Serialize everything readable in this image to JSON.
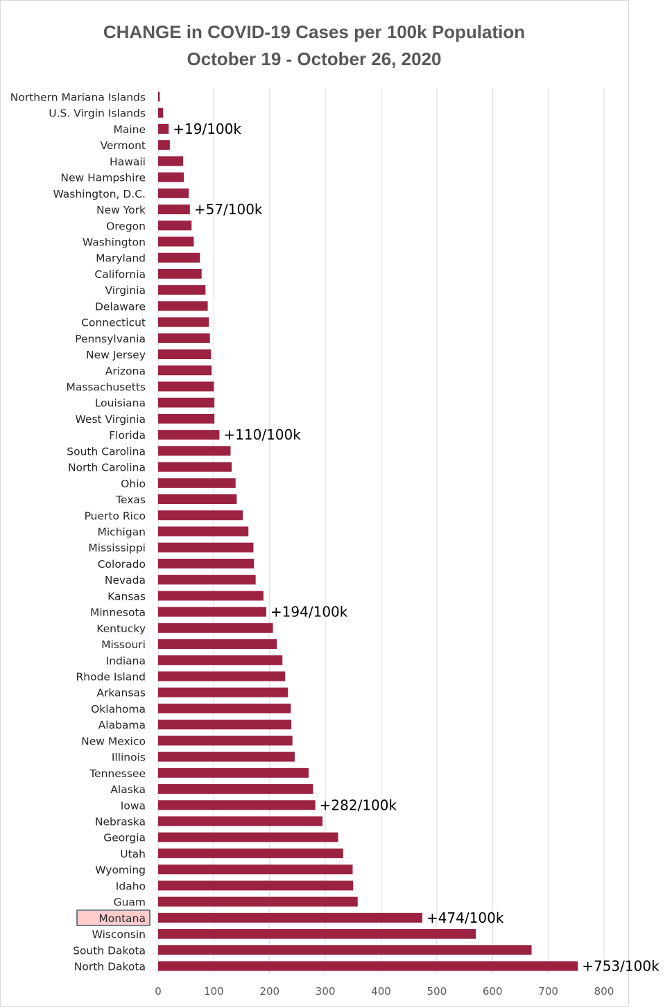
{
  "chart_data": {
    "type": "bar",
    "orientation": "horizontal",
    "title": "CHANGE in COVID-19 Cases per 100k Population",
    "subtitle": "October 19 - October 26, 2020",
    "xlabel": "",
    "ylabel": "",
    "xlim": [
      0,
      800
    ],
    "xticks": [
      "0",
      "100",
      "200",
      "300",
      "400",
      "500",
      "600",
      "700",
      "800"
    ],
    "grid": true,
    "legend": "none",
    "bar_color": "#9b2242",
    "highlight_color": "#ffcccc",
    "highlight_border": "#44546a",
    "highlighted_category": "Montana",
    "categories": [
      "Northern Mariana Islands",
      "U.S. Virgin Islands",
      "Maine",
      "Vermont",
      "Hawaii",
      "New Hampshire",
      "Washington, D.C.",
      "New York",
      "Oregon",
      "Washington",
      "Maryland",
      "California",
      "Virginia",
      "Delaware",
      "Connecticut",
      "Pennsylvania",
      "New Jersey",
      "Arizona",
      "Massachusetts",
      "Louisiana",
      "West Virginia",
      "Florida",
      "South Carolina",
      "North Carolina",
      "Ohio",
      "Texas",
      "Puerto Rico",
      "Michigan",
      "Mississippi",
      "Colorado",
      "Nevada",
      "Kansas",
      "Minnesota",
      "Kentucky",
      "Missouri",
      "Indiana",
      "Rhode Island",
      "Arkansas",
      "Oklahoma",
      "Alabama",
      "New Mexico",
      "Illinois",
      "Tennessee",
      "Alaska",
      "Iowa",
      "Nebraska",
      "Georgia",
      "Utah",
      "Wyoming",
      "Idaho",
      "Guam",
      "Montana",
      "Wisconsin",
      "South Dakota",
      "North Dakota"
    ],
    "values": [
      3,
      9,
      19,
      21,
      45,
      46,
      55,
      57,
      60,
      64,
      75,
      78,
      85,
      89,
      91,
      93,
      95,
      96,
      100,
      101,
      101,
      110,
      130,
      132,
      139,
      141,
      152,
      162,
      171,
      172,
      175,
      189,
      194,
      206,
      213,
      223,
      228,
      233,
      238,
      239,
      241,
      245,
      270,
      278,
      282,
      295,
      323,
      332,
      349,
      350,
      358,
      474,
      570,
      670,
      753
    ],
    "annotations": [
      {
        "category": "Maine",
        "text": "+19/100k"
      },
      {
        "category": "New York",
        "text": "+57/100k"
      },
      {
        "category": "Florida",
        "text": "+110/100k"
      },
      {
        "category": "Minnesota",
        "text": "+194/100k"
      },
      {
        "category": "Iowa",
        "text": "+282/100k"
      },
      {
        "category": "Montana",
        "text": "+474/100k"
      },
      {
        "category": "North Dakota",
        "text": "+753/100k"
      }
    ]
  }
}
